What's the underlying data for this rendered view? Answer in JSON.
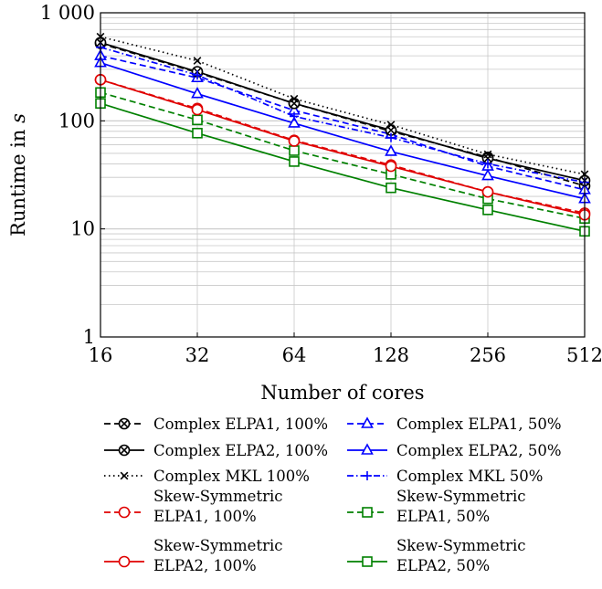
{
  "chart_data": {
    "type": "line",
    "title": "",
    "xlabel": "Number of cores",
    "ylabel_prefix": "Runtime in ",
    "ylabel_unit": "s",
    "x_scale": "log2",
    "y_scale": "log10",
    "x": [
      16,
      32,
      64,
      128,
      256,
      512
    ],
    "x_tick_labels": [
      "16",
      "32",
      "64",
      "128",
      "256",
      "512"
    ],
    "xlim": [
      16,
      512
    ],
    "ylim": [
      1,
      1000
    ],
    "y_ticks": [
      1,
      10,
      100,
      1000
    ],
    "y_tick_labels": [
      "1",
      "10",
      "100",
      "1 000"
    ],
    "grid": true,
    "legend_placement": "bottom",
    "series": [
      {
        "name": "Complex ELPA1, 100%",
        "values": [
          520,
          280,
          145,
          80,
          46,
          25
        ],
        "color": "#000000",
        "dash": "dashed",
        "marker": "otimes"
      },
      {
        "name": "Complex ELPA1, 50%",
        "values": [
          400,
          250,
          125,
          75,
          38,
          23
        ],
        "color": "#0000ff",
        "dash": "dashed",
        "marker": "triangle"
      },
      {
        "name": "Complex ELPA2, 100%",
        "values": [
          530,
          285,
          145,
          82,
          45,
          28
        ],
        "color": "#000000",
        "dash": "solid",
        "marker": "otimes"
      },
      {
        "name": "Complex ELPA2, 50%",
        "values": [
          345,
          178,
          95,
          52,
          31,
          19
        ],
        "color": "#0000ff",
        "dash": "solid",
        "marker": "triangle"
      },
      {
        "name": "Complex MKL 100%",
        "values": [
          600,
          360,
          160,
          92,
          49,
          32
        ],
        "color": "#000000",
        "dash": "dotted",
        "marker": "cross"
      },
      {
        "name": "Complex MKL 50%",
        "values": [
          480,
          265,
          110,
          70,
          40,
          27
        ],
        "color": "#0000ff",
        "dash": "dashdot",
        "marker": "plus"
      },
      {
        "name_line1": "Skew-Symmetric",
        "name_line2": "ELPA1, 100%",
        "values": [
          240,
          130,
          66,
          39,
          22,
          14
        ],
        "color": "#e00000",
        "dash": "dashed",
        "marker": "circle"
      },
      {
        "name_line1": "Skew-Symmetric",
        "name_line2": "ELPA1, 50%",
        "values": [
          183,
          102,
          53,
          32,
          19,
          12.5
        ],
        "color": "#008000",
        "dash": "dashed",
        "marker": "square"
      },
      {
        "name_line1": "Skew-Symmetric",
        "name_line2": "ELPA2, 100%",
        "values": [
          240,
          127,
          65,
          38,
          22,
          13.5
        ],
        "color": "#e00000",
        "dash": "solid",
        "marker": "circle"
      },
      {
        "name_line1": "Skew-Symmetric",
        "name_line2": "ELPA2, 50%",
        "values": [
          145,
          77,
          42,
          24,
          15,
          9.5
        ],
        "color": "#008000",
        "dash": "solid",
        "marker": "square"
      }
    ]
  }
}
